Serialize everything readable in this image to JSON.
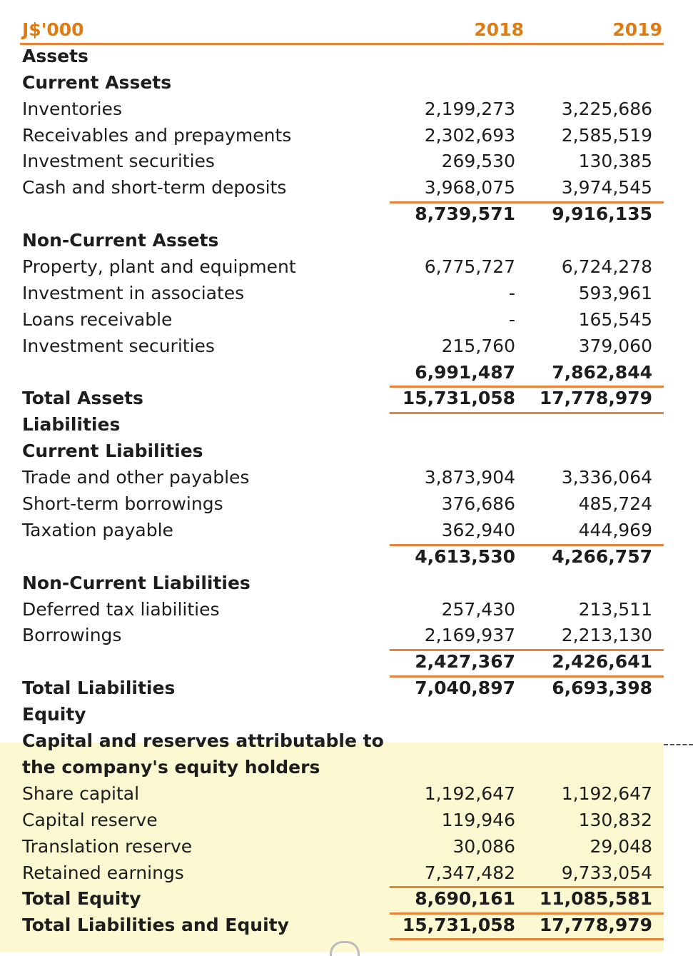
{
  "header": {
    "unit": "J$'000",
    "col2018": "2018",
    "col2019": "2019"
  },
  "rows": [
    {
      "label": "Assets",
      "v2018": "",
      "v2019": "",
      "bold": true
    },
    {
      "label": "Current Assets",
      "v2018": "",
      "v2019": "",
      "bold": true
    },
    {
      "label": "Inventories",
      "v2018": "2,199,273",
      "v2019": "3,225,686"
    },
    {
      "label": "Receivables and prepayments",
      "v2018": "2,302,693",
      "v2019": "2,585,519"
    },
    {
      "label": "Investment securities",
      "v2018": "269,530",
      "v2019": "130,385"
    },
    {
      "label": "Cash and short-term deposits",
      "v2018": "3,968,075",
      "v2019": "3,974,545"
    },
    {
      "label": "",
      "v2018": "8,739,571",
      "v2019": "9,916,135",
      "bold": true
    },
    {
      "label": "Non-Current Assets",
      "v2018": "",
      "v2019": "",
      "bold": true
    },
    {
      "label": "Property, plant and equipment",
      "v2018": "6,775,727",
      "v2019": "6,724,278"
    },
    {
      "label": "Investment in associates",
      "v2018": "-",
      "v2019": "593,961"
    },
    {
      "label": "Loans receivable",
      "v2018": "-",
      "v2019": "165,545"
    },
    {
      "label": "Investment securities",
      "v2018": "215,760",
      "v2019": "379,060"
    },
    {
      "label": "",
      "v2018": "6,991,487",
      "v2019": "7,862,844",
      "bold": true
    },
    {
      "label": "Total Assets",
      "v2018": "15,731,058",
      "v2019": "17,778,979",
      "bold": true
    },
    {
      "label": "Liabilities",
      "v2018": "",
      "v2019": "",
      "bold": true
    },
    {
      "label": "Current Liabilities",
      "v2018": "",
      "v2019": "",
      "bold": true
    },
    {
      "label": "Trade and other payables",
      "v2018": "3,873,904",
      "v2019": "3,336,064"
    },
    {
      "label": "Short-term borrowings",
      "v2018": "376,686",
      "v2019": "485,724"
    },
    {
      "label": "Taxation payable",
      "v2018": "362,940",
      "v2019": "444,969"
    },
    {
      "label": "",
      "v2018": "4,613,530",
      "v2019": "4,266,757",
      "bold": true
    },
    {
      "label": "Non-Current Liabilities",
      "v2018": "",
      "v2019": "",
      "bold": true
    },
    {
      "label": "Deferred tax liabilities",
      "v2018": "257,430",
      "v2019": "213,511"
    },
    {
      "label": "Borrowings",
      "v2018": "2,169,937",
      "v2019": "2,213,130"
    },
    {
      "label": "",
      "v2018": "2,427,367",
      "v2019": "2,426,641",
      "bold": true
    },
    {
      "label": "Total Liabilities",
      "v2018": "7,040,897",
      "v2019": "6,693,398",
      "bold": true
    },
    {
      "label": "Equity",
      "v2018": "",
      "v2019": "",
      "bold": true
    },
    {
      "label": "Capital and reserves attributable to",
      "v2018": "",
      "v2019": "",
      "bold": true
    },
    {
      "label": "the company's equity holders",
      "v2018": "",
      "v2019": "",
      "bold": true
    },
    {
      "label": "Share capital",
      "v2018": "1,192,647",
      "v2019": "1,192,647"
    },
    {
      "label": "Capital reserve",
      "v2018": "119,946",
      "v2019": "130,832"
    },
    {
      "label": "Translation reserve",
      "v2018": "30,086",
      "v2019": "29,048"
    },
    {
      "label": "Retained earnings",
      "v2018": "7,347,482",
      "v2019": "9,733,054"
    },
    {
      "label": "Total Equity",
      "v2018": "8,690,161",
      "v2019": "11,085,581",
      "bold": true
    },
    {
      "label": "Total Liabilities and Equity",
      "v2018": "15,731,058",
      "v2019": "17,778,979",
      "bold": true
    }
  ],
  "colors": {
    "accent": "#e07b12",
    "rule": "#e8843a",
    "highlight": "#fbf8d2"
  }
}
